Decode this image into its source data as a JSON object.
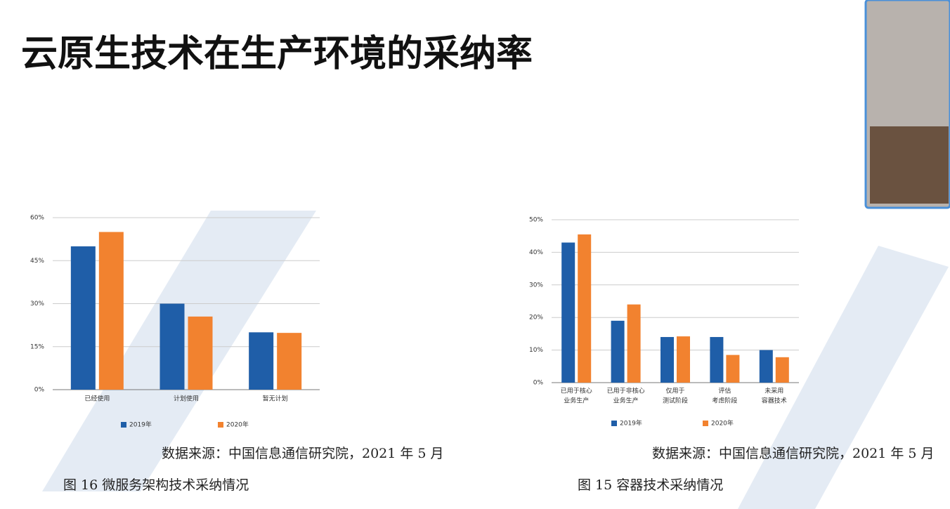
{
  "header": {
    "title": "云原生技术在生产环境的采纳率"
  },
  "chart_data": [
    {
      "type": "bar",
      "title": "图 16 微服务架构技术采纳情况",
      "note": "数据来源：中国信息通信研究院，2021 年 5 月",
      "categories": [
        "已经使用",
        "计划使用",
        "暂无计划"
      ],
      "series": [
        {
          "name": "2019年",
          "color": "#1f5ea8",
          "values": [
            50,
            30,
            20
          ]
        },
        {
          "name": "2020年",
          "color": "#f2822f",
          "values": [
            55,
            25.5,
            19.8
          ]
        }
      ],
      "ylim": [
        0,
        60
      ],
      "yticks": [
        {
          "value": 0,
          "label": "0%"
        },
        {
          "value": 15,
          "label": "15%"
        },
        {
          "value": 30,
          "label": "30%"
        },
        {
          "value": 45,
          "label": "45%"
        },
        {
          "value": 60,
          "label": "60%"
        }
      ],
      "grid": true
    },
    {
      "type": "bar",
      "title": "图 15 容器技术采纳情况",
      "note": "数据来源：中国信息通信研究院，2021 年 5 月",
      "categories": [
        [
          "已用于核心",
          "业务生产"
        ],
        [
          "已用于非核心",
          "业务生产"
        ],
        [
          "仅用于",
          "测试阶段"
        ],
        [
          "评估",
          "考虑阶段"
        ],
        [
          "未采用",
          "容器技术"
        ]
      ],
      "series": [
        {
          "name": "2019年",
          "color": "#1f5ea8",
          "values": [
            43,
            19,
            14,
            14,
            10
          ]
        },
        {
          "name": "2020年",
          "color": "#f2822f",
          "values": [
            45.5,
            24,
            14.2,
            8.5,
            7.8
          ]
        }
      ],
      "ylim": [
        0,
        50
      ],
      "yticks": [
        {
          "value": 0,
          "label": "0%"
        },
        {
          "value": 10,
          "label": "10%"
        },
        {
          "value": 20,
          "label": "20%"
        },
        {
          "value": 30,
          "label": "30%"
        },
        {
          "value": 40,
          "label": "40%"
        },
        {
          "value": 50,
          "label": "50%"
        }
      ],
      "grid": true
    }
  ]
}
